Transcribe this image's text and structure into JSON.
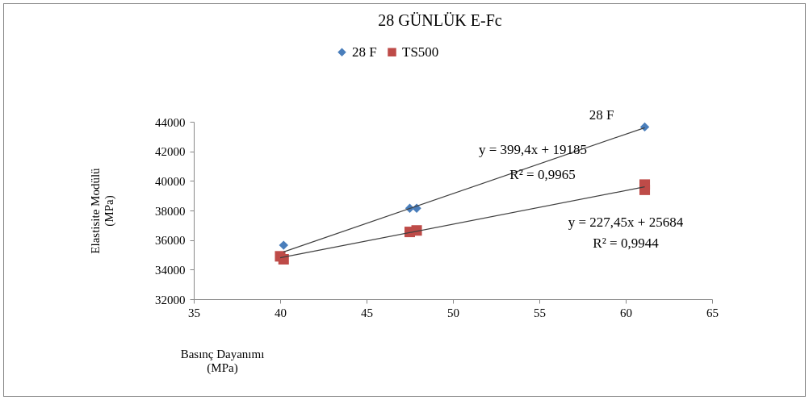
{
  "chart_data": {
    "type": "scatter",
    "title": "28 GÜNLÜK E-Fc",
    "xlabel": "Basınç Dayanımı\n(MPa)",
    "ylabel": "Elastisite Modülü\n(MPa)",
    "xlim": [
      35,
      65
    ],
    "xticks": [
      35,
      40,
      45,
      50,
      55,
      60,
      65
    ],
    "ylim": [
      32000,
      44000
    ],
    "yticks": [
      32000,
      34000,
      36000,
      38000,
      40000,
      42000,
      44000
    ],
    "grid": false,
    "legend": "top",
    "series": [
      {
        "name": "28 F",
        "marker": "diamond",
        "color": "#4a7ebb",
        "x": [
          40.2,
          47.5,
          47.9,
          61.1
        ],
        "values": [
          35650,
          38150,
          38150,
          43650
        ]
      },
      {
        "name": "TS500",
        "marker": "square",
        "color": "#be4b48",
        "x": [
          40.0,
          40.2,
          47.5,
          47.9,
          61.1,
          61.1
        ],
        "values": [
          34900,
          34700,
          36550,
          36650,
          39400,
          39750
        ]
      },
      {
        "type": "line",
        "marker": "none",
        "line_style": "solid",
        "color": "#404040",
        "x": [
          40.2,
          61.1
        ],
        "values": [
          35200,
          43600
        ]
      },
      {
        "type": "line",
        "marker": "none",
        "line_style": "solid",
        "color": "#404040",
        "x": [
          40.0,
          61.1
        ],
        "values": [
          34800,
          39600
        ]
      }
    ],
    "annotations": [
      "28 F",
      "y = 399,4x + 19185",
      "R² = 0,9965",
      "y = 227,45x + 25684",
      "R² = 0,9944"
    ]
  }
}
